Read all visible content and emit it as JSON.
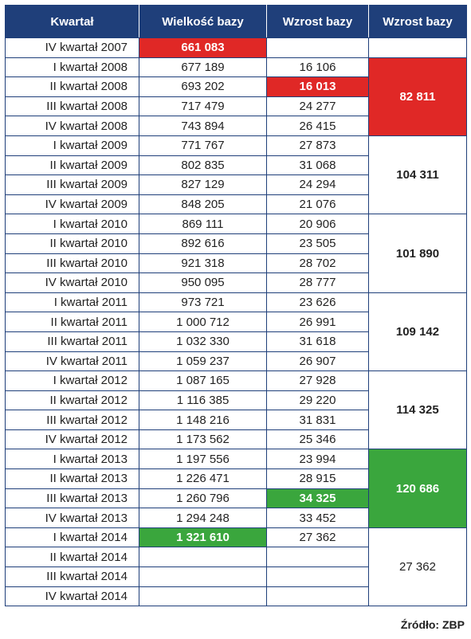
{
  "headers": [
    "Kwartał",
    "Wielkość bazy",
    "Wzrost bazy",
    "Wzrost bazy"
  ],
  "rows": [
    {
      "q": "IV kwartał 2007",
      "size": "661 083",
      "growth": ""
    },
    {
      "q": "I kwartał 2008",
      "size": "677 189",
      "growth": "16 106"
    },
    {
      "q": "II kwartał 2008",
      "size": "693 202",
      "growth": "16 013"
    },
    {
      "q": "III kwartał 2008",
      "size": "717 479",
      "growth": "24 277"
    },
    {
      "q": "IV kwartał 2008",
      "size": "743 894",
      "growth": "26 415"
    },
    {
      "q": "I kwartał 2009",
      "size": "771 767",
      "growth": "27 873"
    },
    {
      "q": "II kwartał 2009",
      "size": "802 835",
      "growth": "31 068"
    },
    {
      "q": "III kwartał 2009",
      "size": "827 129",
      "growth": "24 294"
    },
    {
      "q": "IV kwartał 2009",
      "size": "848 205",
      "growth": "21 076"
    },
    {
      "q": "I kwartał 2010",
      "size": "869 111",
      "growth": "20 906"
    },
    {
      "q": "II kwartał 2010",
      "size": "892 616",
      "growth": "23 505"
    },
    {
      "q": "III kwartał 2010",
      "size": "921 318",
      "growth": "28 702"
    },
    {
      "q": "IV kwartał 2010",
      "size": "950 095",
      "growth": "28 777"
    },
    {
      "q": "I kwartał 2011",
      "size": "973 721",
      "growth": "23 626"
    },
    {
      "q": "II kwartał 2011",
      "size": "1 000 712",
      "growth": "26 991"
    },
    {
      "q": "III kwartał 2011",
      "size": "1 032 330",
      "growth": "31 618"
    },
    {
      "q": "IV kwartał 2011",
      "size": "1 059 237",
      "growth": "26 907"
    },
    {
      "q": "I kwartał 2012",
      "size": "1 087 165",
      "growth": "27 928"
    },
    {
      "q": "II kwartał 2012",
      "size": "1 116 385",
      "growth": "29 220"
    },
    {
      "q": "III kwartał 2012",
      "size": "1 148 216",
      "growth": "31 831"
    },
    {
      "q": "IV kwartał 2012",
      "size": "1 173 562",
      "growth": "25 346"
    },
    {
      "q": "I kwartał 2013",
      "size": "1 197 556",
      "growth": "23 994"
    },
    {
      "q": "II kwartał 2013",
      "size": "1 226 471",
      "growth": "28 915"
    },
    {
      "q": "III kwartał 2013",
      "size": "1 260 796",
      "growth": "34 325"
    },
    {
      "q": "IV kwartał 2013",
      "size": "1 294 248",
      "growth": "33 452"
    },
    {
      "q": "I kwartał 2014",
      "size": "1 321 610",
      "growth": "27 362"
    },
    {
      "q": "II kwartał 2014",
      "size": "",
      "growth": ""
    },
    {
      "q": "III kwartał 2014",
      "size": "",
      "growth": ""
    },
    {
      "q": "IV kwartał 2014",
      "size": "",
      "growth": ""
    }
  ],
  "yearly": [
    {
      "value": "82 811"
    },
    {
      "value": "104 311"
    },
    {
      "value": "101 890"
    },
    {
      "value": "109 142"
    },
    {
      "value": "114 325"
    },
    {
      "value": "120 686"
    },
    {
      "value": "27 362"
    }
  ],
  "highlight_colors": {
    "red": "#e02826",
    "green": "#3aa63d",
    "header": "#1f3f7a"
  },
  "source": "Źródło: ZBP"
}
